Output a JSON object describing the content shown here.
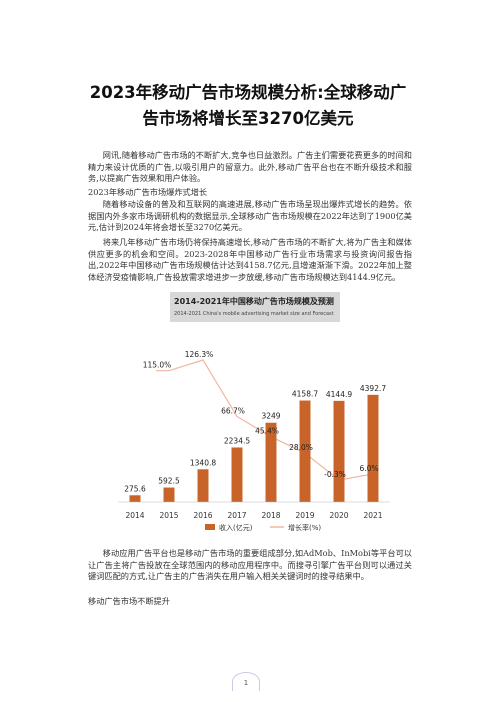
{
  "title_line1": "2023年移动广告市场规模分析:全球移动广",
  "title_line2": "告市场将增长至3270亿美元",
  "paragraphs": [
    "网讯,随着移动广告市场的不断扩大,竞争也日益激烈。广告主们需要花费更多的时间和精力来设计优质的广告,以吸引用户的留意力。此外,移动广告平台也在不断升级技术和服务,以提高广告效果和用户体验。",
    "随着移动设备的普及和互联网的高速进展,移动广告市场呈现出爆炸式增长的趋势。依据国内外多家市场调研机构的数据显示,全球移动广告市场规模在2022年达到了1900亿美元,估计到2024年将会增长至3270亿美元。",
    "将来几年移动广告市场仍将保持高速增长,移动广告市场的不断扩大,将为广告主和媒体供应更多的机会和空间。2023-2028年中国移动广告行业市场需求与投资询问报告指出,2022年中国移动广告市场规模估计达到4158.7亿元,且增速渐渐下滑。2022年加上整体经济受疫情影响,广告投放需求增进步一步放缓,移动广告市场规模达到4144.9亿元。",
    "移动应用广告平台也是移动广告市场的重要组成部分,如AdMob、InMobi等平台可以让广告主将广告投放在全球范围内的移动应用程序中。而搜寻引擎广告平台则可以通过关键词匹配的方式,让广告主的广告消失在用户输入相关关键词时的搜寻结果中。"
  ],
  "heading1": "2023年移动广告市场爆炸式增长",
  "heading2": "移动广告市场不断提升",
  "page_number": "1",
  "colors": {
    "bar": "#c8642a",
    "line": "#f2b6a0",
    "title_bg": "#d8d8d8"
  },
  "chart_data": {
    "type": "bar",
    "title": "2014-2021年中国移动广告市场规模及预测",
    "subtitle": "2014-2021 China's mobile advertising market size and Forecast",
    "categories": [
      "2014",
      "2015",
      "2016",
      "2017",
      "2018",
      "2019",
      "2020",
      "2021"
    ],
    "series": [
      {
        "name": "收入(亿元)",
        "type": "bar",
        "values": [
          275.6,
          592.5,
          1340.8,
          2234.5,
          3249,
          4158.7,
          4144.9,
          4392.7
        ]
      },
      {
        "name": "增长率(%)",
        "type": "line",
        "values": [
          null,
          115.0,
          126.3,
          66.7,
          45.4,
          28.0,
          -0.3,
          6.0
        ]
      }
    ],
    "data_labels_bar": [
      "275.6",
      "592.5",
      "1340.8",
      "2234.5",
      "3249",
      "4158.7",
      "4144.9",
      "4392.7"
    ],
    "data_labels_line": [
      "",
      "115.0%",
      "126.3%",
      "66.7%",
      "45.4%",
      "28.0%",
      "-0.3%",
      "6.0%"
    ],
    "ylim": [
      0,
      5000
    ]
  }
}
